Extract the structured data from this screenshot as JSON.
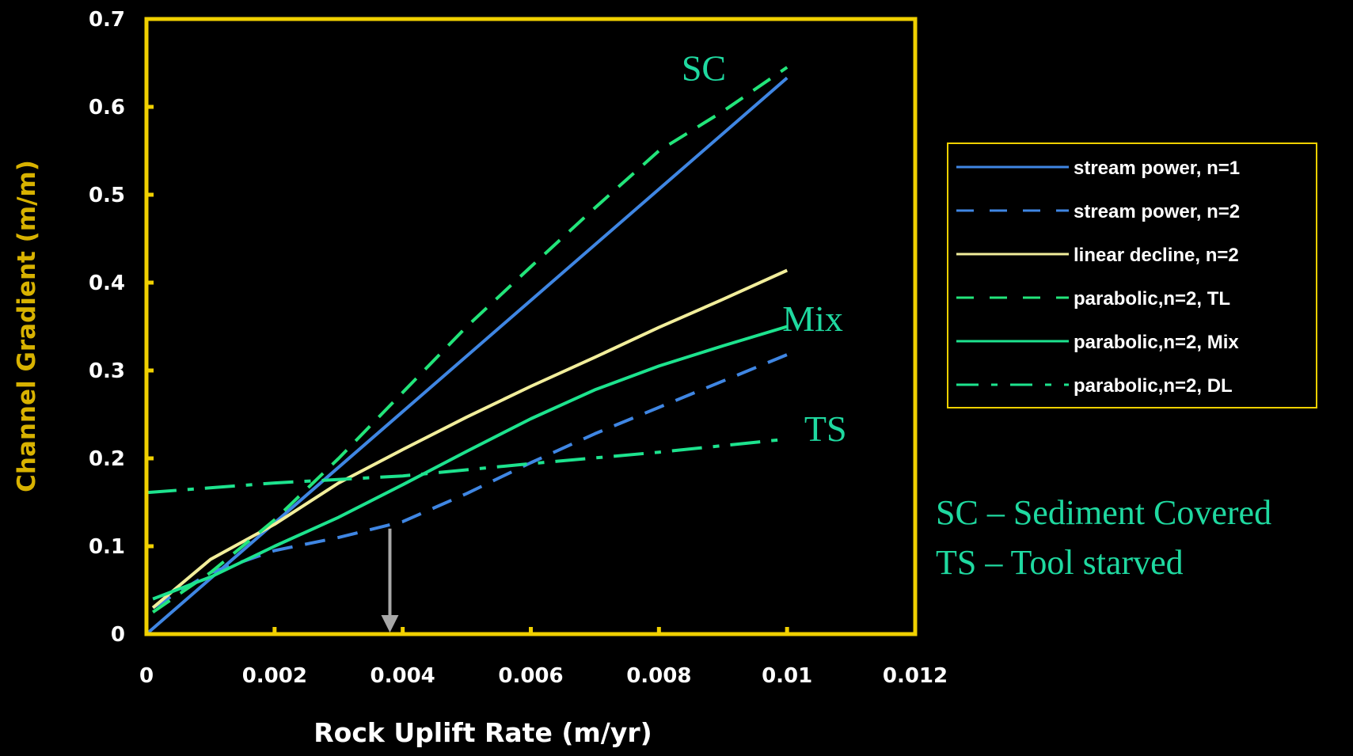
{
  "chart_data": {
    "type": "line",
    "xlabel": "Rock Uplift Rate (m/yr)",
    "ylabel": "Channel Gradient (m/m)",
    "xlim": [
      0,
      0.012
    ],
    "ylim": [
      0,
      0.7
    ],
    "xticks": [
      "0",
      "0.002",
      "0.004",
      "0.006",
      "0.008",
      "0.01",
      "0.012"
    ],
    "yticks": [
      "0",
      "0.1",
      "0.2",
      "0.3",
      "0.4",
      "0.5",
      "0.6",
      "0.7"
    ],
    "grid": false,
    "legend_position": "right",
    "colors": {
      "frame": "#f0d000",
      "ylabel": "#d8b200",
      "annotation": "#1fd9a0",
      "arrow": "#a8a8a8"
    },
    "series": [
      {
        "name": "stream power, n=1",
        "color": "#3f86e3",
        "dash": "solid",
        "points": [
          [
            0,
            0
          ],
          [
            0.01,
            0.633
          ]
        ]
      },
      {
        "name": "stream power, n=2",
        "color": "#3f86e3",
        "dash": "dash",
        "points": [
          [
            0.0001,
            0.03
          ],
          [
            0.001,
            0.07
          ],
          [
            0.002,
            0.095
          ],
          [
            0.003,
            0.11
          ],
          [
            0.004,
            0.128
          ],
          [
            0.005,
            0.16
          ],
          [
            0.006,
            0.195
          ],
          [
            0.007,
            0.228
          ],
          [
            0.008,
            0.258
          ],
          [
            0.009,
            0.288
          ],
          [
            0.01,
            0.318
          ]
        ]
      },
      {
        "name": "linear decline, n=2",
        "color": "#f2ee9b",
        "dash": "solid",
        "points": [
          [
            0.0001,
            0.03
          ],
          [
            0.001,
            0.085
          ],
          [
            0.002,
            0.125
          ],
          [
            0.003,
            0.172
          ],
          [
            0.004,
            0.21
          ],
          [
            0.005,
            0.247
          ],
          [
            0.006,
            0.282
          ],
          [
            0.007,
            0.315
          ],
          [
            0.008,
            0.349
          ],
          [
            0.009,
            0.381
          ],
          [
            0.01,
            0.414
          ]
        ]
      },
      {
        "name": "parabolic,n=2, TL",
        "color": "#22e57a",
        "dash": "dash",
        "points": [
          [
            0.0001,
            0.025
          ],
          [
            0.001,
            0.07
          ],
          [
            0.002,
            0.13
          ],
          [
            0.003,
            0.2
          ],
          [
            0.004,
            0.275
          ],
          [
            0.005,
            0.35
          ],
          [
            0.006,
            0.418
          ],
          [
            0.007,
            0.485
          ],
          [
            0.008,
            0.55
          ],
          [
            0.009,
            0.595
          ],
          [
            0.01,
            0.645
          ]
        ]
      },
      {
        "name": "parabolic,n=2, Mix",
        "color": "#1de38e",
        "dash": "solid",
        "points": [
          [
            0.0001,
            0.04
          ],
          [
            0.001,
            0.065
          ],
          [
            0.002,
            0.1
          ],
          [
            0.003,
            0.133
          ],
          [
            0.004,
            0.17
          ],
          [
            0.005,
            0.208
          ],
          [
            0.006,
            0.245
          ],
          [
            0.007,
            0.278
          ],
          [
            0.008,
            0.305
          ],
          [
            0.009,
            0.328
          ],
          [
            0.01,
            0.35
          ]
        ]
      },
      {
        "name": "parabolic,n=2, DL",
        "color": "#1de38e",
        "dash": "dashdot",
        "points": [
          [
            0,
            0.161
          ],
          [
            0.002,
            0.172
          ],
          [
            0.004,
            0.18
          ],
          [
            0.006,
            0.194
          ],
          [
            0.008,
            0.207
          ],
          [
            0.01,
            0.222
          ]
        ]
      }
    ],
    "annotations": [
      {
        "text": "SC",
        "x": 0.0087,
        "y": 0.63
      },
      {
        "text": "Mix",
        "x": 0.0104,
        "y": 0.345
      },
      {
        "text": "TS",
        "x": 0.0106,
        "y": 0.22
      }
    ],
    "arrow": {
      "x": 0.0038,
      "y_from": 0.12,
      "y_to": 0
    }
  },
  "notes": [
    "SC – Sediment Covered",
    "TS – Tool starved"
  ]
}
